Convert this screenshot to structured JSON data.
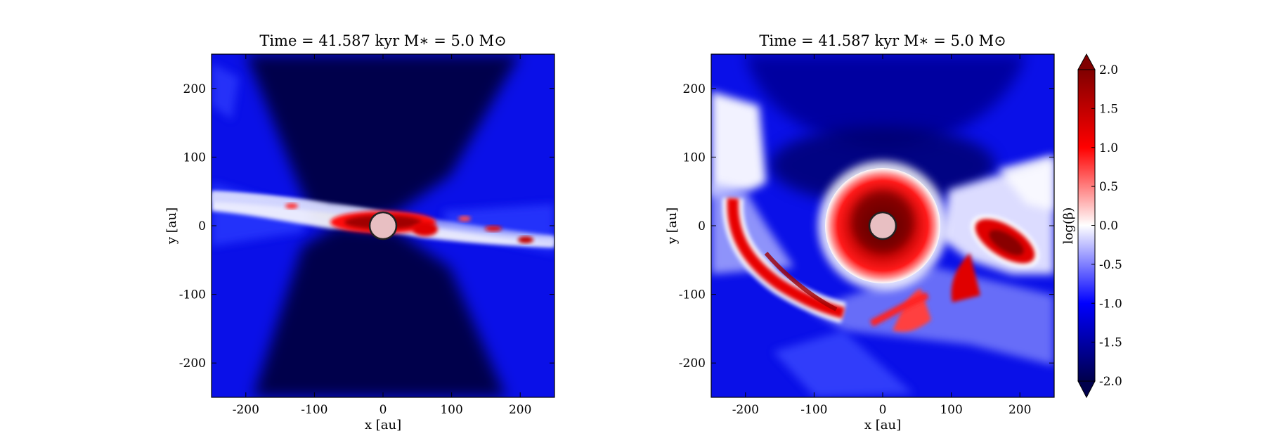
{
  "chart_data": [
    {
      "type": "heatmap",
      "title": "Time = 41.587 kyr    M∗ = 5.0 M⊙",
      "xlabel": "x [au]",
      "ylabel": "y [au]",
      "xlim": [
        -250,
        250
      ],
      "ylim": [
        -250,
        250
      ],
      "xticks": [
        -200,
        -100,
        0,
        100,
        200
      ],
      "yticks": [
        -200,
        -100,
        0,
        100,
        200
      ],
      "xtick_labels": [
        "-200",
        "-100",
        "0",
        "100",
        "200"
      ],
      "ytick_labels": [
        "-200",
        "-100",
        "0",
        "100",
        "200"
      ],
      "field": "log(β)",
      "view": "edge-on disk slice",
      "sink_particle": {
        "x": 0,
        "y": 0,
        "radius_au": 20
      }
    },
    {
      "type": "heatmap",
      "title": "Time = 41.587 kyr    M∗ = 5.0 M⊙",
      "xlabel": "x [au]",
      "ylabel": "y [au]",
      "xlim": [
        -250,
        250
      ],
      "ylim": [
        -250,
        250
      ],
      "xticks": [
        -200,
        -100,
        0,
        100,
        200
      ],
      "yticks": [
        -200,
        -100,
        0,
        100,
        200
      ],
      "xtick_labels": [
        "-200",
        "-100",
        "0",
        "100",
        "200"
      ],
      "ytick_labels": [
        "-200",
        "-100",
        "0",
        "100",
        "200"
      ],
      "field": "log(β)",
      "view": "face-on disk slice",
      "sink_particle": {
        "x": 0,
        "y": 0,
        "radius_au": 20
      }
    }
  ],
  "colorbar": {
    "label": "log(β)",
    "min": -2.0,
    "max": 2.0,
    "ticks": [
      2.0,
      1.5,
      1.0,
      0.5,
      0.0,
      -0.5,
      -1.0,
      -1.5,
      -2.0
    ],
    "tick_labels": [
      "2.0",
      "1.5",
      "1.0",
      "0.5",
      "0.0",
      "-0.5",
      "-1.0",
      "-1.5",
      "-2.0"
    ],
    "colormap": "seismic",
    "extend": "both",
    "colors": {
      "low": "#00004c",
      "mid_low": "#0000ff",
      "center": "#ffffff",
      "mid_high": "#ff0000",
      "high": "#800000"
    }
  }
}
